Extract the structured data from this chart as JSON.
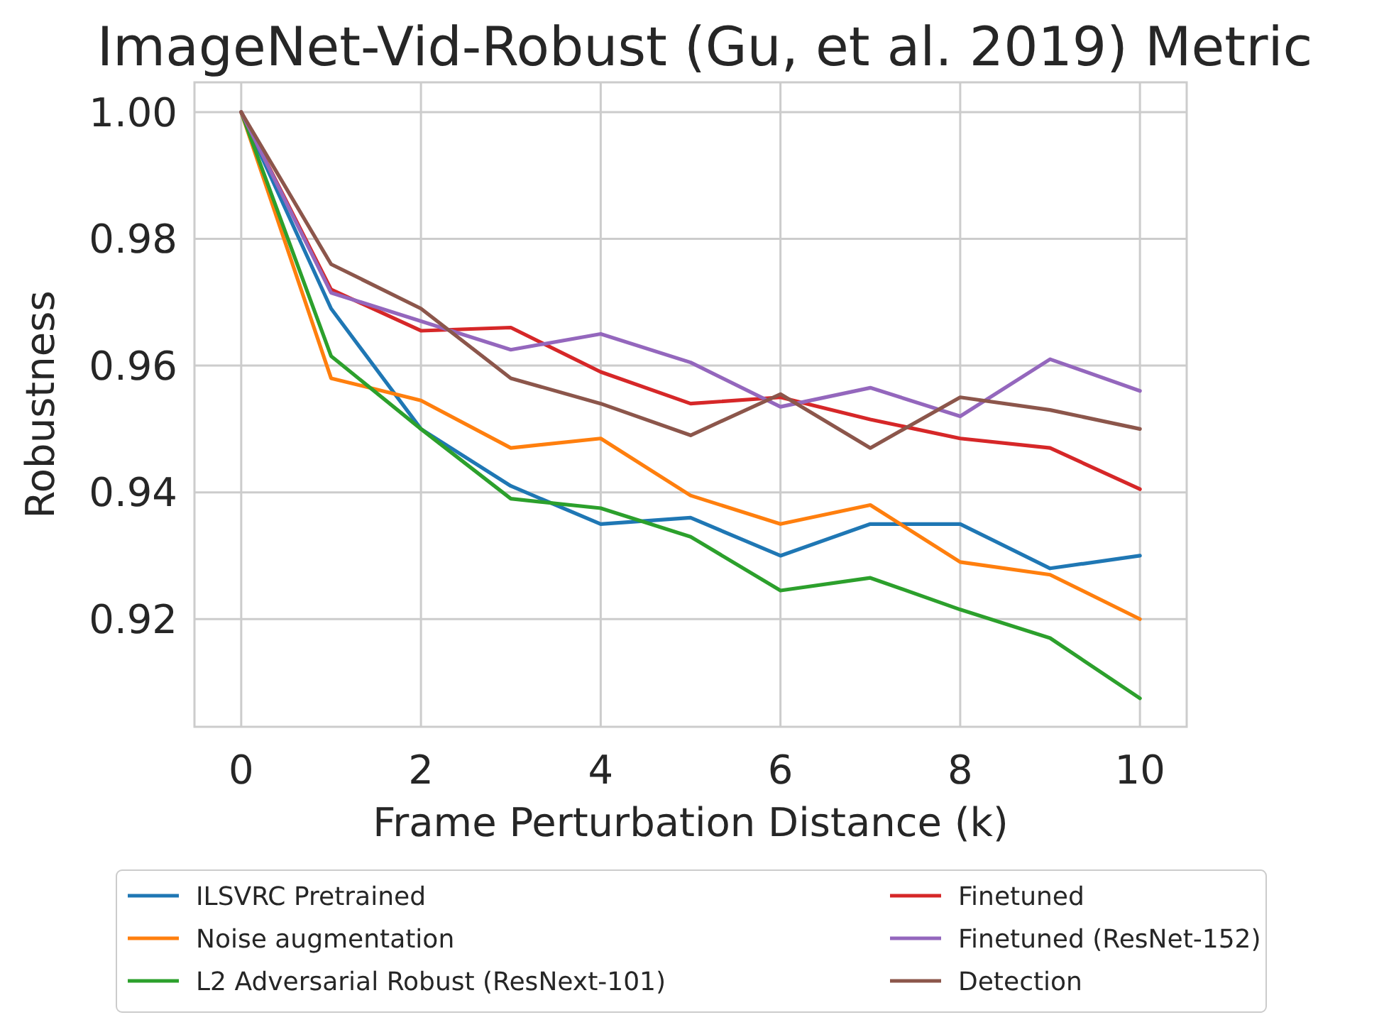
{
  "chart_data": {
    "type": "line",
    "title": "ImageNet-Vid-Robust (Gu, et al. 2019) Metric",
    "xlabel": "Frame Perturbation Distance (k)",
    "ylabel": "Robustness",
    "x": [
      0,
      1,
      2,
      3,
      4,
      5,
      6,
      7,
      8,
      9,
      10
    ],
    "series": [
      {
        "name": "ILSVRC Pretrained",
        "color": "#1f77b4",
        "values": [
          1.0,
          0.969,
          0.95,
          0.941,
          0.935,
          0.936,
          0.93,
          0.935,
          0.935,
          0.928,
          0.93
        ]
      },
      {
        "name": "Noise augmentation",
        "color": "#ff7f0e",
        "values": [
          1.0,
          0.958,
          0.9545,
          0.947,
          0.9485,
          0.9395,
          0.935,
          0.938,
          0.929,
          0.927,
          0.92
        ]
      },
      {
        "name": "L2 Adversarial Robust (ResNext-101)",
        "color": "#2ca02c",
        "values": [
          1.0,
          0.9615,
          0.95,
          0.939,
          0.9375,
          0.933,
          0.9245,
          0.9265,
          0.9215,
          0.917,
          0.9075
        ]
      },
      {
        "name": "Finetuned",
        "color": "#d62728",
        "values": [
          1.0,
          0.972,
          0.9655,
          0.966,
          0.959,
          0.954,
          0.955,
          0.9515,
          0.9485,
          0.947,
          0.9405
        ]
      },
      {
        "name": "Finetuned (ResNet-152)",
        "color": "#9467bd",
        "values": [
          1.0,
          0.9715,
          0.967,
          0.9625,
          0.965,
          0.9605,
          0.9535,
          0.9565,
          0.952,
          0.961,
          0.956
        ]
      },
      {
        "name": "Detection",
        "color": "#8c564b",
        "values": [
          1.0,
          0.976,
          0.969,
          0.958,
          0.954,
          0.949,
          0.9555,
          0.947,
          0.955,
          0.953,
          0.95
        ]
      }
    ],
    "xlim": [
      -0.52,
      10.52
    ],
    "xticks": [
      0,
      2,
      4,
      6,
      8,
      10
    ],
    "ylim": [
      0.903,
      1.0047
    ],
    "yticks": [
      {
        "value": 0.92,
        "label": "0.92"
      },
      {
        "value": 0.94,
        "label": "0.94"
      },
      {
        "value": 0.96,
        "label": "0.96"
      },
      {
        "value": 0.98,
        "label": "0.98"
      },
      {
        "value": 1.0,
        "label": "1.00"
      }
    ],
    "grid": true,
    "legend": "bottom",
    "marker": "none",
    "line_style": "solid"
  }
}
